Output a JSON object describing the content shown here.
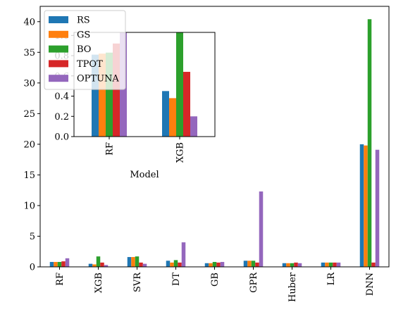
{
  "chart_data": [
    {
      "type": "bar",
      "title": "",
      "xlabel": "",
      "ylabel": "",
      "ylim": [
        0,
        42.5
      ],
      "yticks": [
        0,
        5,
        10,
        15,
        20,
        25,
        30,
        35,
        40
      ],
      "grid": false,
      "legend": "upper-left",
      "categories": [
        "RF",
        "XGB",
        "SVR",
        "DT",
        "GB",
        "GPR",
        "Huber",
        "LR",
        "DNN"
      ],
      "series": [
        {
          "name": "RS",
          "color": "#1f77b4",
          "values": [
            0.8,
            0.5,
            1.6,
            1.0,
            0.6,
            1.0,
            0.6,
            0.7,
            20.0
          ]
        },
        {
          "name": "GS",
          "color": "#ff7f0e",
          "values": [
            0.8,
            0.4,
            1.6,
            0.7,
            0.6,
            1.0,
            0.6,
            0.7,
            19.8
          ]
        },
        {
          "name": "BO",
          "color": "#2ca02c",
          "values": [
            0.8,
            1.7,
            1.7,
            1.1,
            0.8,
            1.0,
            0.6,
            0.7,
            40.4
          ]
        },
        {
          "name": "TPOT",
          "color": "#d62728",
          "values": [
            0.9,
            0.7,
            0.7,
            0.7,
            0.7,
            0.7,
            0.7,
            0.7,
            0.7
          ]
        },
        {
          "name": "OPTUNA",
          "color": "#9467bd",
          "values": [
            1.4,
            0.3,
            0.5,
            4.0,
            0.8,
            12.3,
            0.6,
            0.7,
            19.1
          ]
        }
      ]
    },
    {
      "type": "bar",
      "title": "",
      "xlabel": "Model",
      "ylabel": "",
      "ylim": [
        0,
        1.03
      ],
      "yticks": [
        0.0,
        0.2,
        0.4,
        0.6,
        0.8,
        1.0
      ],
      "grid": false,
      "categories": [
        "RF",
        "XGB"
      ],
      "series": [
        {
          "name": "RS",
          "color": "#1f77b4",
          "values": [
            0.81,
            0.45
          ]
        },
        {
          "name": "GS",
          "color": "#ff7f0e",
          "values": [
            0.82,
            0.38
          ]
        },
        {
          "name": "BO",
          "color": "#2ca02c",
          "values": [
            0.83,
            1.03
          ]
        },
        {
          "name": "TPOT",
          "color": "#d62728",
          "values": [
            0.92,
            0.64
          ]
        },
        {
          "name": "OPTUNA",
          "color": "#9467bd",
          "values": [
            1.03,
            0.2
          ]
        }
      ]
    }
  ]
}
